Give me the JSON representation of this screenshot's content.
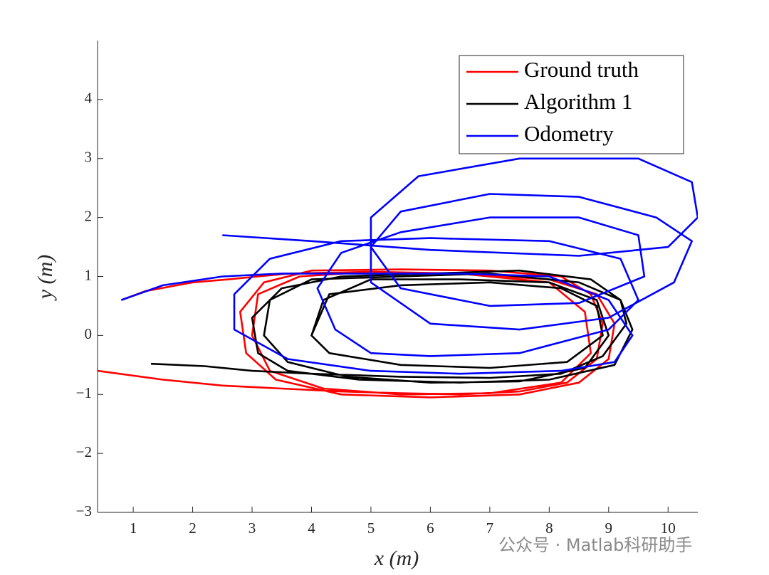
{
  "chart_data": {
    "type": "line",
    "xlabel": "x (m)",
    "ylabel": "y (m)",
    "xlim": [
      0.4,
      10.5
    ],
    "ylim": [
      -3,
      5
    ],
    "xticks": [
      1,
      2,
      3,
      4,
      5,
      6,
      7,
      8,
      9,
      10
    ],
    "yticks": [
      {
        "value": -3,
        "label": "−3"
      },
      {
        "value": -2,
        "label": "−2"
      },
      {
        "value": -1,
        "label": "−1"
      },
      0,
      1,
      2,
      3,
      4
    ],
    "legend": "northeast",
    "watermark": "公众号 · Matlab科研助手",
    "series": [
      {
        "name": "Ground truth",
        "color": "#ff0000",
        "x": [
          0.4,
          1.5,
          2.5,
          3.5,
          4.5,
          5.5,
          6.5,
          7.5,
          8.3,
          8.8,
          8.9,
          8.7,
          8.2,
          7,
          5.5,
          4,
          3.2,
          2.8,
          2.9,
          3.4,
          4.5,
          6,
          7.5,
          8.5,
          9.0,
          9.1,
          8.8,
          8.0,
          6.5,
          5,
          3.8,
          3.1,
          3.0,
          3.3,
          4.2,
          5.5,
          7,
          8.2,
          8.7,
          8.6,
          8.0,
          6.5,
          5,
          3.6,
          2.6,
          2.0,
          1.2,
          0.8
        ],
        "values": [
          -0.6,
          -0.75,
          -0.85,
          -0.9,
          -0.95,
          -0.98,
          -1.0,
          -0.95,
          -0.8,
          -0.4,
          0.2,
          0.7,
          1.0,
          1.1,
          1.12,
          1.1,
          0.9,
          0.4,
          -0.3,
          -0.75,
          -1.0,
          -1.05,
          -1.0,
          -0.8,
          -0.4,
          0.2,
          0.7,
          0.95,
          1.05,
          1.08,
          1.0,
          0.7,
          0.0,
          -0.6,
          -0.9,
          -1.0,
          -0.98,
          -0.8,
          -0.3,
          0.4,
          0.9,
          1.05,
          1.08,
          1.05,
          0.95,
          0.9,
          0.75,
          0.6
        ]
      },
      {
        "name": "Algorithm 1",
        "color": "#000000",
        "x": [
          1.3,
          2.2,
          3.0,
          4.0,
          5.5,
          7,
          8.2,
          8.9,
          9.3,
          9.2,
          8.7,
          7.5,
          6,
          4.5,
          3.5,
          3.0,
          3.1,
          3.6,
          4.8,
          6.5,
          8,
          9.1,
          9.4,
          9.2,
          8.5,
          7,
          5.5,
          4.0,
          3.3,
          3.2,
          3.6,
          4.6,
          6.0,
          7.5,
          8.6,
          9.0,
          8.8,
          8.0,
          6.5,
          5,
          4.2,
          4.0,
          4.3,
          5.5,
          7,
          8.3,
          8.9,
          8.8,
          8.2,
          7.0,
          5.5,
          4.3,
          4.0
        ],
        "values": [
          -0.48,
          -0.52,
          -0.6,
          -0.65,
          -0.7,
          -0.72,
          -0.65,
          -0.35,
          0.2,
          0.6,
          0.95,
          1.1,
          1.05,
          1.0,
          0.8,
          0.3,
          -0.3,
          -0.6,
          -0.75,
          -0.8,
          -0.75,
          -0.5,
          0.1,
          0.6,
          0.9,
          1.05,
          1.0,
          0.95,
          0.6,
          0.0,
          -0.45,
          -0.7,
          -0.8,
          -0.78,
          -0.55,
          0.0,
          0.6,
          0.9,
          0.95,
          0.95,
          0.6,
          0.0,
          -0.3,
          -0.5,
          -0.55,
          -0.45,
          0.0,
          0.5,
          0.8,
          0.9,
          0.85,
          0.7,
          0.0
        ]
      },
      {
        "name": "Odometry",
        "color": "#0000ff",
        "x": [
          0.8,
          1.5,
          2.5,
          3.5,
          5,
          6.5,
          8,
          9.0,
          9.4,
          9.1,
          8.2,
          6.5,
          5,
          3.6,
          2.7,
          2.7,
          3.3,
          4.5,
          6,
          8,
          9.2,
          9.5,
          9.0,
          7.5,
          6,
          5,
          4.4,
          4.1,
          4.5,
          5.5,
          7,
          8.5,
          9.5,
          9.6,
          8.5,
          7,
          5.5,
          5,
          5.5,
          7,
          8.5,
          9.8,
          10.4,
          10.1,
          9,
          7.5,
          6,
          5,
          5,
          5.8,
          7.5,
          9.5,
          10.4,
          10.5,
          10,
          8.5,
          6,
          4,
          2.5
        ],
        "values": [
          0.6,
          0.85,
          1.0,
          1.05,
          1.05,
          1.05,
          1.0,
          0.6,
          0.0,
          -0.45,
          -0.6,
          -0.65,
          -0.6,
          -0.4,
          0.1,
          0.7,
          1.3,
          1.6,
          1.65,
          1.6,
          1.3,
          0.6,
          0.1,
          -0.3,
          -0.35,
          -0.3,
          0.1,
          0.8,
          1.4,
          1.75,
          2.0,
          2.0,
          1.7,
          1.0,
          0.55,
          0.5,
          0.8,
          1.5,
          2.1,
          2.4,
          2.35,
          2.0,
          1.6,
          0.9,
          0.3,
          0.1,
          0.2,
          0.9,
          2.0,
          2.7,
          3.0,
          3.0,
          2.6,
          2.0,
          1.5,
          1.35,
          1.45,
          1.6,
          1.7
        ]
      }
    ]
  }
}
